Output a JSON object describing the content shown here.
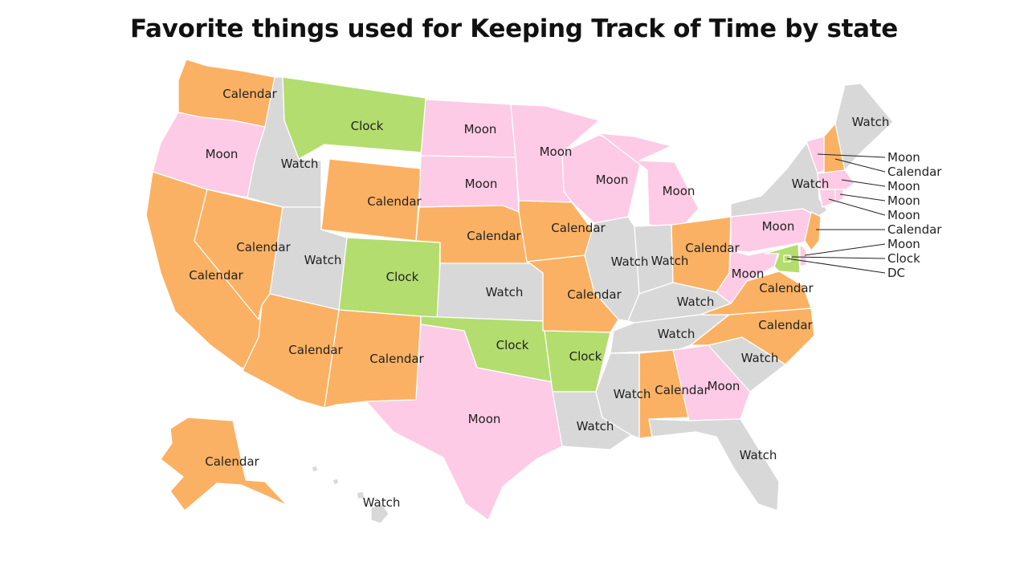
{
  "title": "Favorite things used for Keeping Track of Time by state",
  "colors": {
    "Calendar": "#fbb163",
    "Moon": "#fdcbe5",
    "Clock": "#b3dd6f",
    "Watch": "#d8d8d8"
  },
  "states": {
    "WA": "Calendar",
    "OR": "Moon",
    "CA": "Calendar",
    "NV": "Calendar",
    "ID": "Watch",
    "MT": "Clock",
    "WY": "Calendar",
    "UT": "Watch",
    "AZ": "Calendar",
    "CO": "Clock",
    "NM": "Calendar",
    "ND": "Moon",
    "SD": "Moon",
    "NE": "Calendar",
    "KS": "Watch",
    "OK": "Clock",
    "TX": "Moon",
    "MN": "Moon",
    "IA": "Calendar",
    "MO": "Calendar",
    "AR": "Clock",
    "LA": "Watch",
    "WI": "Moon",
    "IL": "Watch",
    "MI": "Moon",
    "IN": "Watch",
    "OH": "Calendar",
    "KY": "Watch",
    "TN": "Watch",
    "MS": "Watch",
    "AL": "Calendar",
    "GA": "Moon",
    "FL": "Watch",
    "SC": "Watch",
    "NC": "Calendar",
    "VA": "Calendar",
    "WV": "Moon",
    "PA": "Moon",
    "NY": "Watch",
    "NJ": "Calendar",
    "MD": "Clock",
    "DE": "Moon",
    "DC": "Clock",
    "ME": "Watch",
    "VT": "Moon",
    "NH": "Calendar",
    "MA": "Moon",
    "RI": "Moon",
    "CT": "Moon",
    "AK": "Calendar",
    "HI": "Watch"
  },
  "callouts": [
    "Moon",
    "Calendar",
    "Moon",
    "Moon",
    "Moon",
    "Calendar",
    "Moon",
    "Clock",
    "DC"
  ]
}
